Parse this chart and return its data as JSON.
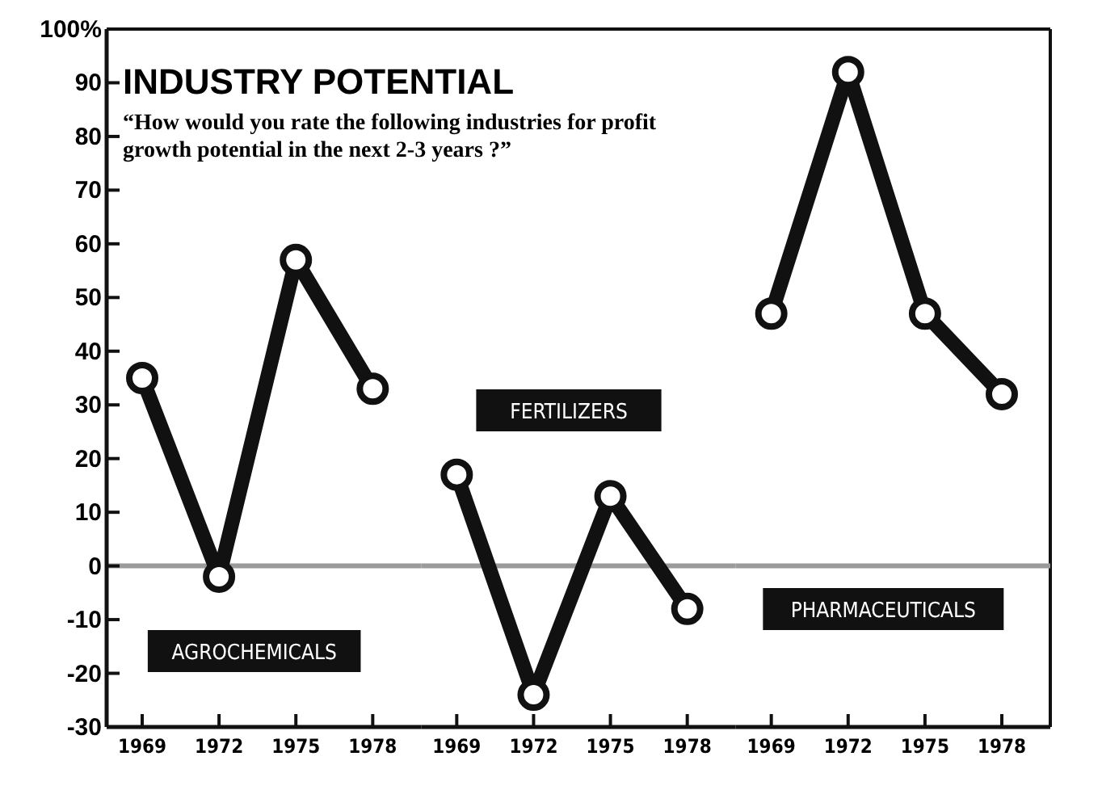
{
  "chart_data": [
    {
      "type": "line",
      "title": "INDUSTRY POTENTIAL",
      "subtitle": "“How would you rate the following industries for profit growth potential in the next 2-3 years ?”",
      "categories": [
        "1969",
        "1972",
        "1975",
        "1978"
      ],
      "series": [
        {
          "name": "AGROCHEMICALS",
          "color": "#111111",
          "values": [
            35,
            -2,
            57,
            33
          ]
        }
      ],
      "ylim": [
        -30,
        100
      ],
      "yticks": [
        -30,
        -20,
        -10,
        0,
        10,
        20,
        30,
        40,
        50,
        60,
        70,
        80,
        90,
        {
          "value": 100,
          "label": "100%"
        }
      ],
      "marker": "circle",
      "line_style": "solid",
      "ref_lines": [
        {
          "axis": "y",
          "value": 0,
          "color": "#9a9a9a"
        }
      ]
    },
    {
      "type": "line",
      "categories": [
        "1969",
        "1972",
        "1975",
        "1978"
      ],
      "series": [
        {
          "name": "FERTILIZERS",
          "color": "#111111",
          "values": [
            17,
            -24,
            13,
            -8
          ]
        }
      ],
      "ylim": [
        -30,
        100
      ],
      "tick_labels": "x",
      "marker": "circle",
      "line_style": "solid",
      "ref_lines": [
        {
          "axis": "y",
          "value": 0,
          "color": "#9a9a9a"
        }
      ]
    },
    {
      "type": "line",
      "categories": [
        "1969",
        "1972",
        "1975",
        "1978"
      ],
      "series": [
        {
          "name": "PHARMACEUTICALS",
          "color": "#111111",
          "values": [
            47,
            92,
            47,
            32
          ]
        }
      ],
      "ylim": [
        -30,
        100
      ],
      "tick_labels": "x",
      "marker": "circle",
      "line_style": "solid",
      "ref_lines": [
        {
          "axis": "y",
          "value": 0,
          "color": "#9a9a9a"
        }
      ]
    }
  ]
}
